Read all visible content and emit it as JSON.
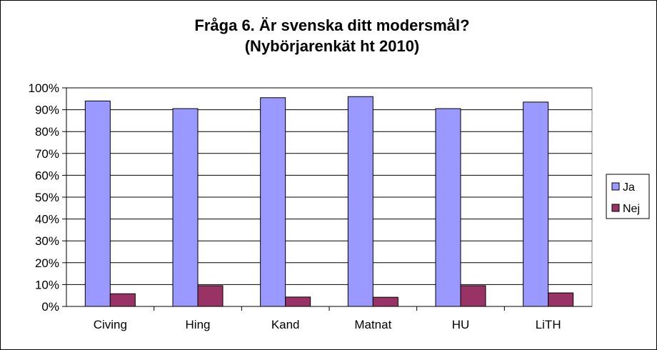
{
  "chart_data": {
    "type": "bar",
    "title": "Fråga 6. Är svenska ditt modersmål?",
    "subtitle": "(Nybörjarenkät ht 2010)",
    "xlabel": "",
    "ylabel": "",
    "categories": [
      "Civing",
      "Hing",
      "Kand",
      "Matnat",
      "HU",
      "LiTH"
    ],
    "series": [
      {
        "name": "Ja",
        "color": "#9999FF",
        "values": [
          94,
          90.5,
          95.5,
          96,
          90.5,
          93.5
        ]
      },
      {
        "name": "Nej",
        "color": "#993366",
        "values": [
          5.8,
          9.5,
          4.3,
          4.2,
          9.5,
          6.2
        ]
      }
    ],
    "ylim": [
      0,
      100
    ],
    "yticks": [
      0,
      10,
      20,
      30,
      40,
      50,
      60,
      70,
      80,
      90,
      100
    ],
    "ytick_labels": [
      "0%",
      "10%",
      "20%",
      "30%",
      "40%",
      "50%",
      "60%",
      "70%",
      "80%",
      "90%",
      "100%"
    ],
    "grid": true,
    "legend": "right"
  }
}
